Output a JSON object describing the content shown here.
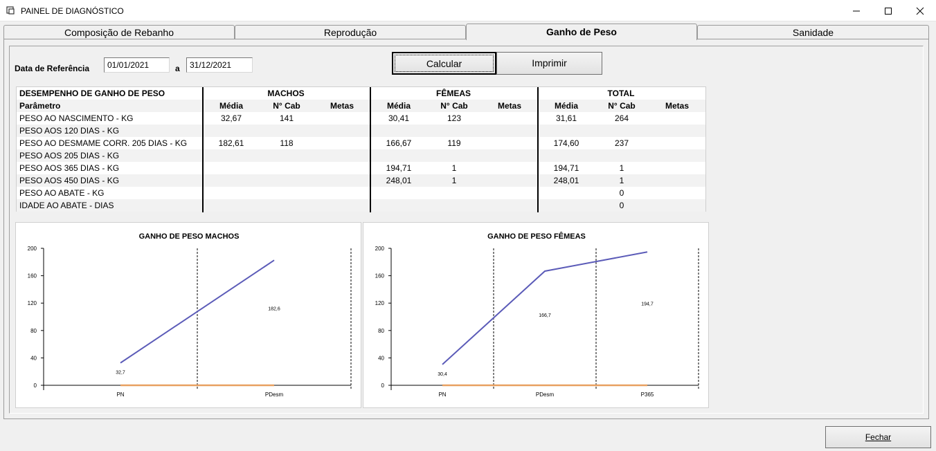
{
  "window": {
    "title": "PAINEL DE DIAGNÓSTICO"
  },
  "tabs": [
    {
      "label": "Composição de Rebanho",
      "active": false
    },
    {
      "label": "Reprodução",
      "active": false
    },
    {
      "label": "Ganho de Peso",
      "active": true
    },
    {
      "label": "Sanidade",
      "active": false
    }
  ],
  "form": {
    "ref_label": "Data de Referência",
    "date_from": "01/01/2021",
    "separator": "a",
    "date_to": "31/12/2021",
    "calcular": "Calcular",
    "imprimir": "Imprimir"
  },
  "table": {
    "title": "DESEMPENHO DE GANHO DE PESO",
    "param_header": "Parâmetro",
    "groups": [
      "MACHOS",
      "FÊMEAS",
      "TOTAL"
    ],
    "subheaders": [
      "Média",
      "N° Cab",
      "Metas"
    ],
    "rows": [
      {
        "param": "PESO AO NASCIMENTO - KG",
        "m_media": "32,67",
        "m_cab": "141",
        "m_metas": "",
        "f_media": "30,41",
        "f_cab": "123",
        "f_metas": "",
        "t_media": "31,61",
        "t_cab": "264",
        "t_metas": ""
      },
      {
        "param": "PESO AOS 120 DIAS - KG",
        "m_media": "",
        "m_cab": "",
        "m_metas": "",
        "f_media": "",
        "f_cab": "",
        "f_metas": "",
        "t_media": "",
        "t_cab": "",
        "t_metas": ""
      },
      {
        "param": "PESO AO DESMAME CORR. 205 DIAS - KG",
        "m_media": "182,61",
        "m_cab": "118",
        "m_metas": "",
        "f_media": "166,67",
        "f_cab": "119",
        "f_metas": "",
        "t_media": "174,60",
        "t_cab": "237",
        "t_metas": ""
      },
      {
        "param": "PESO AOS 205 DIAS - KG",
        "m_media": "",
        "m_cab": "",
        "m_metas": "",
        "f_media": "",
        "f_cab": "",
        "f_metas": "",
        "t_media": "",
        "t_cab": "",
        "t_metas": ""
      },
      {
        "param": "PESO AOS 365 DIAS - KG",
        "m_media": "",
        "m_cab": "",
        "m_metas": "",
        "f_media": "194,71",
        "f_cab": "1",
        "f_metas": "",
        "t_media": "194,71",
        "t_cab": "1",
        "t_metas": ""
      },
      {
        "param": "PESO AOS 450 DIAS - KG",
        "m_media": "",
        "m_cab": "",
        "m_metas": "",
        "f_media": "248,01",
        "f_cab": "1",
        "f_metas": "",
        "t_media": "248,01",
        "t_cab": "1",
        "t_metas": ""
      },
      {
        "param": "PESO AO ABATE - KG",
        "m_media": "",
        "m_cab": "",
        "m_metas": "",
        "f_media": "",
        "f_cab": "",
        "f_metas": "",
        "t_media": "",
        "t_cab": "0",
        "t_metas": ""
      },
      {
        "param": "IDADE AO ABATE - DIAS",
        "m_media": "",
        "m_cab": "",
        "m_metas": "",
        "f_media": "",
        "f_cab": "",
        "f_metas": "",
        "t_media": "",
        "t_cab": "0",
        "t_metas": ""
      }
    ]
  },
  "chart_data": [
    {
      "type": "line",
      "title": "GANHO DE PESO MACHOS",
      "categories": [
        "PN",
        "PDesm"
      ],
      "series": [
        {
          "values": [
            32.7,
            182.6
          ],
          "color": "#5b5bb8"
        },
        {
          "values": [
            0,
            0
          ],
          "color": "#e8a060"
        }
      ],
      "data_labels": [
        "32,7",
        "182,6"
      ],
      "yticks": [
        "200",
        "160",
        "120",
        "80",
        "40",
        "0"
      ],
      "ylim": [
        0,
        200
      ]
    },
    {
      "type": "line",
      "title": "GANHO DE PESO FÊMEAS",
      "categories": [
        "PN",
        "PDesm",
        "P365"
      ],
      "series": [
        {
          "values": [
            30.4,
            166.7,
            194.7
          ],
          "color": "#5b5bb8"
        },
        {
          "values": [
            0,
            0,
            0
          ],
          "color": "#e8a060"
        }
      ],
      "data_labels": [
        "30,4",
        "166,7",
        "194,7"
      ],
      "yticks": [
        "200",
        "160",
        "120",
        "80",
        "40",
        "0"
      ],
      "ylim": [
        0,
        200
      ]
    }
  ],
  "footer": {
    "fechar": "Fechar"
  }
}
